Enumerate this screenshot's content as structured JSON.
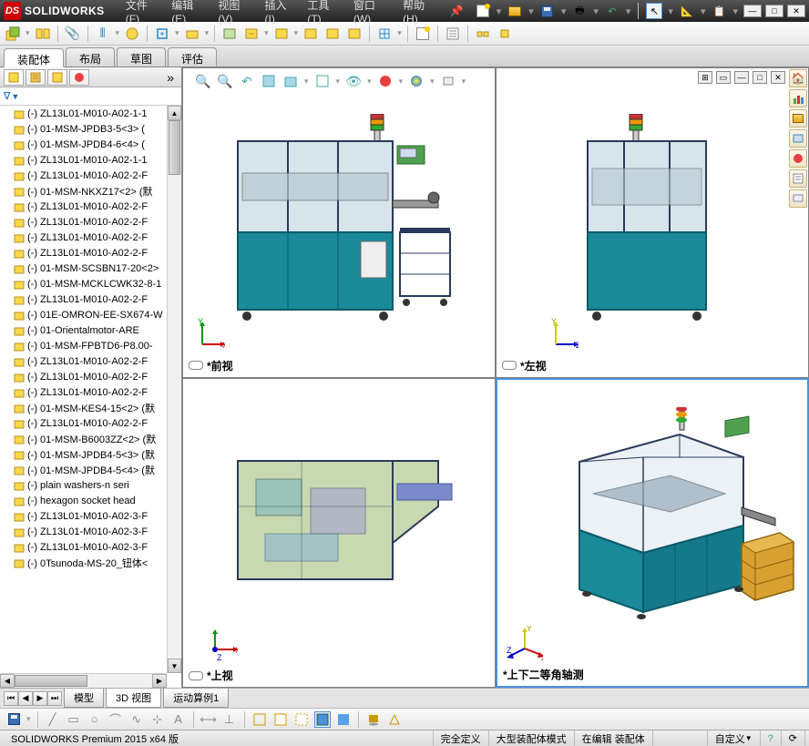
{
  "app": {
    "name": "SOLIDWORKS"
  },
  "menus": [
    "文件(F)",
    "编辑(E)",
    "视图(V)",
    "插入(I)",
    "工具(T)",
    "窗口(W)",
    "帮助(H)"
  ],
  "ribbon_tabs": [
    {
      "label": "装配体",
      "active": true
    },
    {
      "label": "布局",
      "active": false
    },
    {
      "label": "草图",
      "active": false
    },
    {
      "label": "评估",
      "active": false
    }
  ],
  "filter_label": "▼",
  "tree_items": [
    "(-) ZL13L01-M010-A02-1-1",
    "(-) 01-MSM-JPDB3-5<3> (",
    "(-) 01-MSM-JPDB4-6<4> (",
    "(-) ZL13L01-M010-A02-1-1",
    "(-) ZL13L01-M010-A02-2-F",
    "(-) 01-MSM-NKXZ17<2> (默",
    "(-) ZL13L01-M010-A02-2-F",
    "(-) ZL13L01-M010-A02-2-F",
    "(-) ZL13L01-M010-A02-2-F",
    "(-) ZL13L01-M010-A02-2-F",
    "(-) 01-MSM-SCSBN17-20<2>",
    "(-) 01-MSM-MCKLCWK32-8-1",
    "(-) ZL13L01-M010-A02-2-F",
    "(-) 01E-OMRON-EE-SX674-W",
    "(-) 01-Orientalmotor-ARE",
    "(-) 01-MSM-FPBTD6-P8.00-",
    "(-) ZL13L01-M010-A02-2-F",
    "(-) ZL13L01-M010-A02-2-F",
    "(-) ZL13L01-M010-A02-2-F",
    "(-) 01-MSM-KES4-15<2> (默",
    "(-) ZL13L01-M010-A02-2-F",
    "(-) 01-MSM-B6003ZZ<2> (默",
    "(-) 01-MSM-JPDB4-5<3> (默",
    "(-) 01-MSM-JPDB4-5<4> (默",
    "(-) plain washers-n seri",
    "(-) hexagon socket head",
    "(-) ZL13L01-M010-A02-3-F",
    "(-) ZL13L01-M010-A02-3-F",
    "(-) ZL13L01-M010-A02-3-F",
    "(-) 0Tsunoda-MS-20_钮体<"
  ],
  "viewports": {
    "tl": "*前视",
    "tr": "*左视",
    "bl": "*上视",
    "br": "*上下二等角轴测"
  },
  "bottom_tabs": [
    {
      "label": "模型",
      "active": false
    },
    {
      "label": "3D 视图",
      "active": true
    },
    {
      "label": "运动算例1",
      "active": false
    }
  ],
  "status": {
    "version": "SOLIDWORKS Premium 2015 x64 版",
    "def": "完全定义",
    "mode": "大型装配体模式",
    "edit": "在编辑 装配体",
    "custom": "自定义"
  },
  "colors": {
    "machine_body": "#1a8a9a",
    "machine_frame": "#2a3a5a",
    "machine_table": "#d8a030",
    "panel_green": "#50a050",
    "triad_x": "#cc0000",
    "triad_y": "#cccc00",
    "triad_z": "#0000cc"
  }
}
